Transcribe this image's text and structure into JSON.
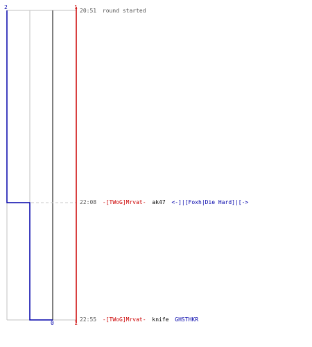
{
  "colors": {
    "grid": "#c0c0c0",
    "dashed": "#c8c8c8",
    "team_red": "#cc0000",
    "team_blue": "#0000aa",
    "time_text": "#555555",
    "weapon_text": "#000000",
    "score_line_dark": "#555555"
  },
  "scores": {
    "blue_start": "2",
    "red_start": "1",
    "blue_end": "0",
    "red_end": "1"
  },
  "events": [
    {
      "time": "20:51",
      "text": "round started",
      "killer": "",
      "weapon": "",
      "victim": ""
    },
    {
      "time": "22:08",
      "text": "",
      "killer": "-[TWoG]Mrvat-",
      "weapon": "ak47",
      "victim": "<-]|[Foxh|Die Hard]|[->"
    },
    {
      "time": "22:55",
      "text": "",
      "killer": "-[TWoG]Mrvat-",
      "weapon": "knife",
      "victim": "GHSTHKR"
    }
  ]
}
